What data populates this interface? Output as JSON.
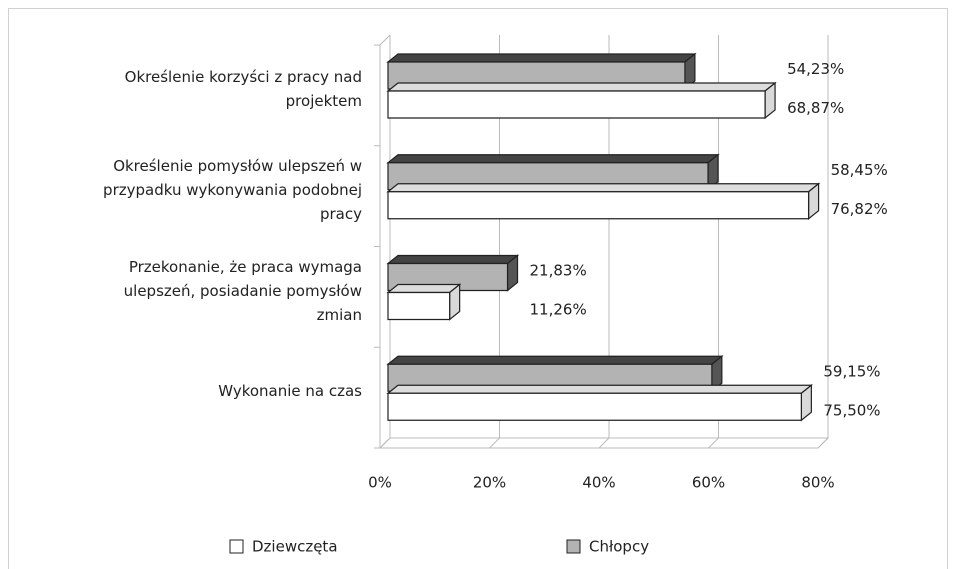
{
  "chart_data": {
    "type": "bar3d_horizontal",
    "categories": [
      "Określenie korzyści z pracy nad projektem",
      "Określenie pomysłów ulepszeń w przypadku wykonywania podobnej pracy",
      "Przekonanie, że praca wymaga ulepszeń, posiadanie pomysłów zmian",
      "Wykonanie na czas"
    ],
    "series": [
      {
        "name": "Dziewczęta",
        "color": "#ffffff",
        "values": [
          68.87,
          76.82,
          11.26,
          75.5
        ],
        "value_labels": [
          "68,87%",
          "76,82%",
          "11,26%",
          "75,50%"
        ]
      },
      {
        "name": "Chłopcy",
        "color": "#b3b3b3",
        "values": [
          54.23,
          58.45,
          21.83,
          59.15
        ],
        "value_labels": [
          "54,23%",
          "58,45%",
          "21,83%",
          "59,15%"
        ]
      }
    ],
    "xlim": [
      0,
      80
    ],
    "xticks": [
      {
        "value": 0,
        "label": "0%"
      },
      {
        "value": 20,
        "label": "20%"
      },
      {
        "value": 40,
        "label": "40%"
      },
      {
        "value": 60,
        "label": "60%"
      },
      {
        "value": 80,
        "label": "80%"
      }
    ],
    "grid": true,
    "legend": "bottom"
  }
}
